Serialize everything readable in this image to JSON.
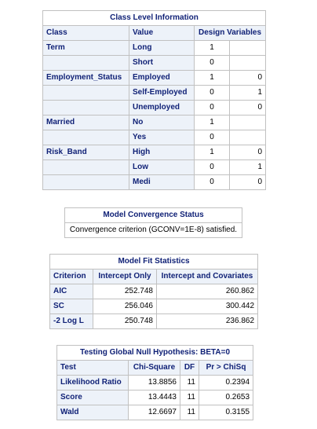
{
  "class_level": {
    "title": "Class Level Information",
    "headers": [
      "Class",
      "Value",
      "Design Variables"
    ],
    "rows": [
      {
        "cls": "Term",
        "value": "Long",
        "d1": "1",
        "d2": ""
      },
      {
        "cls": "",
        "value": "Short",
        "d1": "0",
        "d2": ""
      },
      {
        "cls": "Employment_Status",
        "value": "Employed",
        "d1": "1",
        "d2": "0"
      },
      {
        "cls": "",
        "value": "Self-Employed",
        "d1": "0",
        "d2": "1"
      },
      {
        "cls": "",
        "value": "Unemployed",
        "d1": "0",
        "d2": "0"
      },
      {
        "cls": "Married",
        "value": "No",
        "d1": "1",
        "d2": ""
      },
      {
        "cls": "",
        "value": "Yes",
        "d1": "0",
        "d2": ""
      },
      {
        "cls": "Risk_Band",
        "value": "High",
        "d1": "1",
        "d2": "0"
      },
      {
        "cls": "",
        "value": "Low",
        "d1": "0",
        "d2": "1"
      },
      {
        "cls": "",
        "value": "Medi",
        "d1": "0",
        "d2": "0"
      }
    ]
  },
  "convergence": {
    "title": "Model Convergence Status",
    "message": "Convergence criterion (GCONV=1E-8) satisfied."
  },
  "fit_stats": {
    "title": "Model Fit Statistics",
    "headers": [
      "Criterion",
      "Intercept Only",
      "Intercept and Covariates"
    ],
    "rows": [
      {
        "criterion": "AIC",
        "intercept_only": "252.748",
        "with_covariates": "260.862"
      },
      {
        "criterion": "SC",
        "intercept_only": "256.046",
        "with_covariates": "300.442"
      },
      {
        "criterion": "-2 Log L",
        "intercept_only": "250.748",
        "with_covariates": "236.862"
      }
    ]
  },
  "global_null": {
    "title": "Testing Global Null Hypothesis: BETA=0",
    "headers": [
      "Test",
      "Chi-Square",
      "DF",
      "Pr > ChiSq"
    ],
    "rows": [
      {
        "test": "Likelihood Ratio",
        "chisq": "13.8856",
        "df": "11",
        "p": "0.2394"
      },
      {
        "test": "Score",
        "chisq": "13.4443",
        "df": "11",
        "p": "0.2653"
      },
      {
        "test": "Wald",
        "chisq": "12.6697",
        "df": "11",
        "p": "0.3155"
      }
    ]
  }
}
